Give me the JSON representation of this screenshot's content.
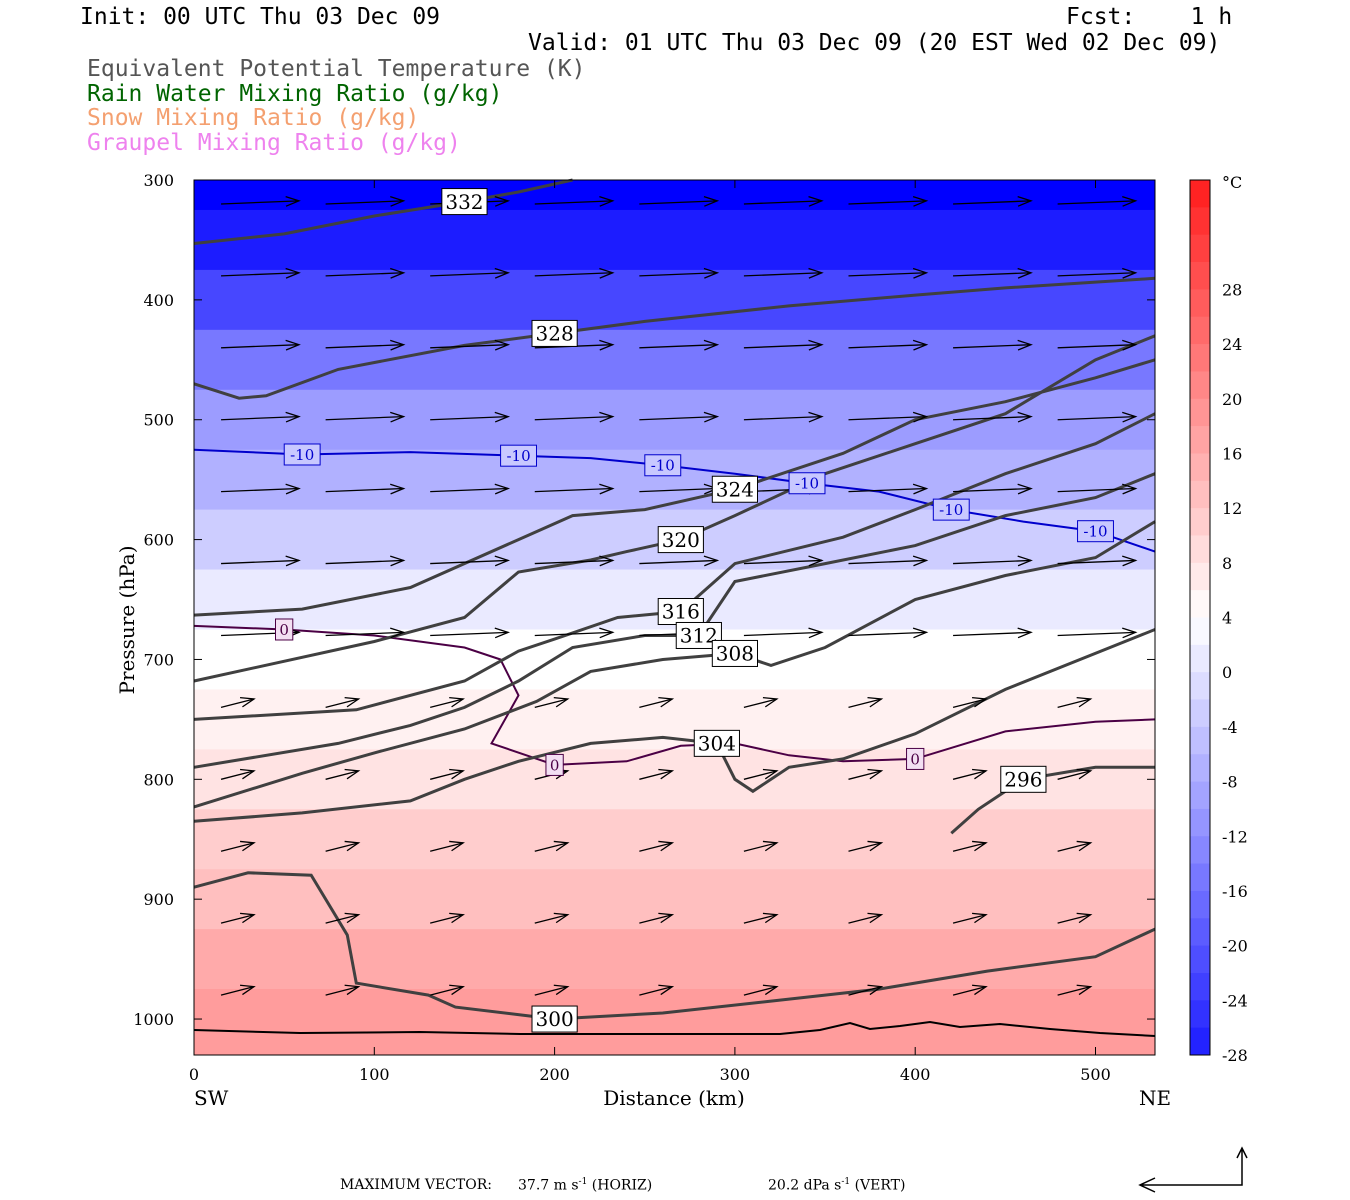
{
  "header": {
    "init": "Init: 00 UTC Thu 03 Dec 09",
    "fcst": "Fcst:    1 h",
    "valid": "Valid: 01 UTC Thu 03 Dec 09 (20 EST Wed 02 Dec 09)"
  },
  "legend": [
    {
      "text": "Equivalent Potential Temperature (K)",
      "color": "#555555"
    },
    {
      "text": "Rain Water Mixing Ratio (g/kg)",
      "color": "#006400"
    },
    {
      "text": "Snow Mixing Ratio (g/kg)",
      "color": "#f4a070"
    },
    {
      "text": "Graupel Mixing Ratio (g/kg)",
      "color": "#ee82ee"
    }
  ],
  "axes": {
    "ylabel": "Pressure (hPa)",
    "xlabel": "Distance (km)",
    "left_end": "SW",
    "right_end": "NE"
  },
  "colorbar": {
    "unit": "°C",
    "ticks": [
      "28",
      "24",
      "20",
      "16",
      "12",
      "8",
      "4",
      "0",
      "-4",
      "-8",
      "-12",
      "-16",
      "-20",
      "-24",
      "-28"
    ]
  },
  "footer": {
    "prefix": "MAXIMUM VECTOR:",
    "horiz_val": "37.7 m s",
    "horiz_unit": "(HORIZ)",
    "vert_val": "20.2 dPa s",
    "vert_unit": "(VERT)",
    "exp": "-1"
  },
  "chart_data": {
    "type": "contour",
    "x_axis": {
      "label": "Distance (km)",
      "ticks": [
        0,
        100,
        200,
        300,
        400,
        500
      ],
      "range": [
        0,
        533
      ]
    },
    "y_axis": {
      "label": "Pressure (hPa)",
      "ticks": [
        300,
        400,
        500,
        600,
        700,
        800,
        900,
        1000
      ],
      "range": [
        300,
        1030
      ]
    },
    "fill": {
      "quantity": "temperature",
      "unit": "°C",
      "levels": [
        {
          "p": 300,
          "t": -36
        },
        {
          "p": 350,
          "t": -32
        },
        {
          "p": 400,
          "t": -26
        },
        {
          "p": 450,
          "t": -19
        },
        {
          "p": 500,
          "t": -14
        },
        {
          "p": 550,
          "t": -11
        },
        {
          "p": 600,
          "t": -7
        },
        {
          "p": 650,
          "t": -3
        },
        {
          "p": 700,
          "t": 0
        },
        {
          "p": 750,
          "t": 2
        },
        {
          "p": 800,
          "t": 4
        },
        {
          "p": 850,
          "t": 7
        },
        {
          "p": 900,
          "t": 9
        },
        {
          "p": 950,
          "t": 12
        },
        {
          "p": 1000,
          "t": 14
        }
      ]
    },
    "theta_e_contours": [
      {
        "label": "332",
        "points": [
          [
            0,
            353
          ],
          [
            50,
            345
          ],
          [
            100,
            330
          ],
          [
            150,
            318
          ],
          [
            180,
            310
          ],
          [
            210,
            300
          ]
        ]
      },
      {
        "label": "328",
        "points": [
          [
            0,
            470
          ],
          [
            25,
            482
          ],
          [
            40,
            480
          ],
          [
            80,
            458
          ],
          [
            150,
            438
          ],
          [
            200,
            428
          ],
          [
            250,
            418
          ],
          [
            330,
            405
          ],
          [
            400,
            396
          ],
          [
            450,
            390
          ],
          [
            533,
            382
          ]
        ]
      },
      {
        "label": "324",
        "points": [
          [
            0,
            663
          ],
          [
            60,
            658
          ],
          [
            120,
            640
          ],
          [
            180,
            600
          ],
          [
            210,
            580
          ],
          [
            250,
            575
          ],
          [
            300,
            558
          ],
          [
            360,
            528
          ],
          [
            400,
            500
          ],
          [
            450,
            485
          ],
          [
            500,
            465
          ],
          [
            533,
            450
          ]
        ]
      },
      {
        "label": "320",
        "points": [
          [
            0,
            718
          ],
          [
            100,
            685
          ],
          [
            150,
            665
          ],
          [
            180,
            627
          ],
          [
            220,
            617
          ],
          [
            240,
            610
          ],
          [
            270,
            600
          ],
          [
            300,
            580
          ],
          [
            350,
            545
          ],
          [
            400,
            520
          ],
          [
            450,
            495
          ],
          [
            500,
            450
          ],
          [
            533,
            430
          ]
        ]
      },
      {
        "label": "316",
        "points": [
          [
            0,
            750
          ],
          [
            90,
            742
          ],
          [
            150,
            718
          ],
          [
            180,
            693
          ],
          [
            200,
            683
          ],
          [
            235,
            665
          ],
          [
            270,
            660
          ],
          [
            300,
            620
          ],
          [
            360,
            598
          ],
          [
            400,
            575
          ],
          [
            450,
            545
          ],
          [
            500,
            520
          ],
          [
            533,
            495
          ]
        ]
      },
      {
        "label": "312",
        "points": [
          [
            0,
            790
          ],
          [
            80,
            770
          ],
          [
            120,
            755
          ],
          [
            150,
            740
          ],
          [
            180,
            718
          ],
          [
            210,
            690
          ],
          [
            250,
            680
          ],
          [
            280,
            680
          ],
          [
            300,
            635
          ],
          [
            350,
            620
          ],
          [
            400,
            605
          ],
          [
            450,
            580
          ],
          [
            500,
            565
          ],
          [
            533,
            545
          ]
        ]
      },
      {
        "label": "308",
        "points": [
          [
            0,
            823
          ],
          [
            60,
            795
          ],
          [
            100,
            778
          ],
          [
            150,
            758
          ],
          [
            190,
            735
          ],
          [
            220,
            710
          ],
          [
            260,
            700
          ],
          [
            300,
            695
          ],
          [
            320,
            705
          ],
          [
            350,
            690
          ],
          [
            400,
            650
          ],
          [
            450,
            630
          ],
          [
            500,
            615
          ],
          [
            533,
            585
          ]
        ]
      },
      {
        "label": "304",
        "points": [
          [
            0,
            835
          ],
          [
            60,
            828
          ],
          [
            120,
            818
          ],
          [
            150,
            800
          ],
          [
            180,
            785
          ],
          [
            220,
            770
          ],
          [
            260,
            765
          ],
          [
            290,
            770
          ],
          [
            300,
            800
          ],
          [
            310,
            810
          ],
          [
            330,
            790
          ],
          [
            360,
            783
          ],
          [
            400,
            762
          ],
          [
            450,
            725
          ],
          [
            533,
            675
          ]
        ]
      },
      {
        "label": "300",
        "points": [
          [
            0,
            890
          ],
          [
            30,
            878
          ],
          [
            65,
            880
          ],
          [
            85,
            930
          ],
          [
            90,
            970
          ],
          [
            130,
            980
          ],
          [
            145,
            990
          ],
          [
            200,
            1000
          ],
          [
            260,
            995
          ],
          [
            320,
            985
          ],
          [
            380,
            975
          ],
          [
            440,
            960
          ],
          [
            500,
            948
          ],
          [
            533,
            925
          ]
        ]
      },
      {
        "label": "296",
        "points": [
          [
            420,
            845
          ],
          [
            435,
            825
          ],
          [
            460,
            800
          ],
          [
            500,
            790
          ],
          [
            533,
            790
          ]
        ]
      }
    ],
    "isotherms": [
      {
        "label": "-10",
        "points": [
          [
            0,
            525
          ],
          [
            60,
            529
          ],
          [
            120,
            527
          ],
          [
            180,
            530
          ],
          [
            220,
            532
          ],
          [
            260,
            538
          ],
          [
            300,
            545
          ],
          [
            340,
            553
          ],
          [
            380,
            560
          ],
          [
            420,
            575
          ],
          [
            460,
            585
          ],
          [
            500,
            593
          ],
          [
            533,
            610
          ]
        ]
      },
      {
        "label": "0",
        "points": [
          [
            0,
            672
          ],
          [
            50,
            675
          ],
          [
            100,
            680
          ],
          [
            150,
            690
          ],
          [
            170,
            700
          ],
          [
            180,
            730
          ],
          [
            165,
            770
          ],
          [
            200,
            788
          ],
          [
            240,
            785
          ],
          [
            270,
            772
          ],
          [
            300,
            770
          ],
          [
            330,
            780
          ],
          [
            360,
            785
          ],
          [
            400,
            783
          ],
          [
            450,
            760
          ],
          [
            500,
            752
          ],
          [
            533,
            750
          ]
        ]
      }
    ],
    "wind_vector_max": {
      "horizontal": "37.7 m s-1",
      "vertical": "20.2 dPa s-1"
    }
  }
}
